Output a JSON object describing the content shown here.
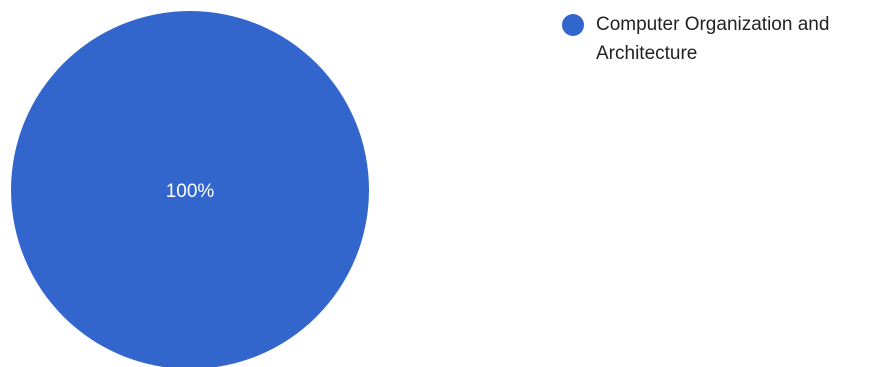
{
  "chart_data": {
    "type": "pie",
    "slices": [
      {
        "name": "Computer Organization and Architecture",
        "value": 100,
        "label": "100%",
        "color": "#3366cc"
      }
    ],
    "legend_position": "right"
  }
}
